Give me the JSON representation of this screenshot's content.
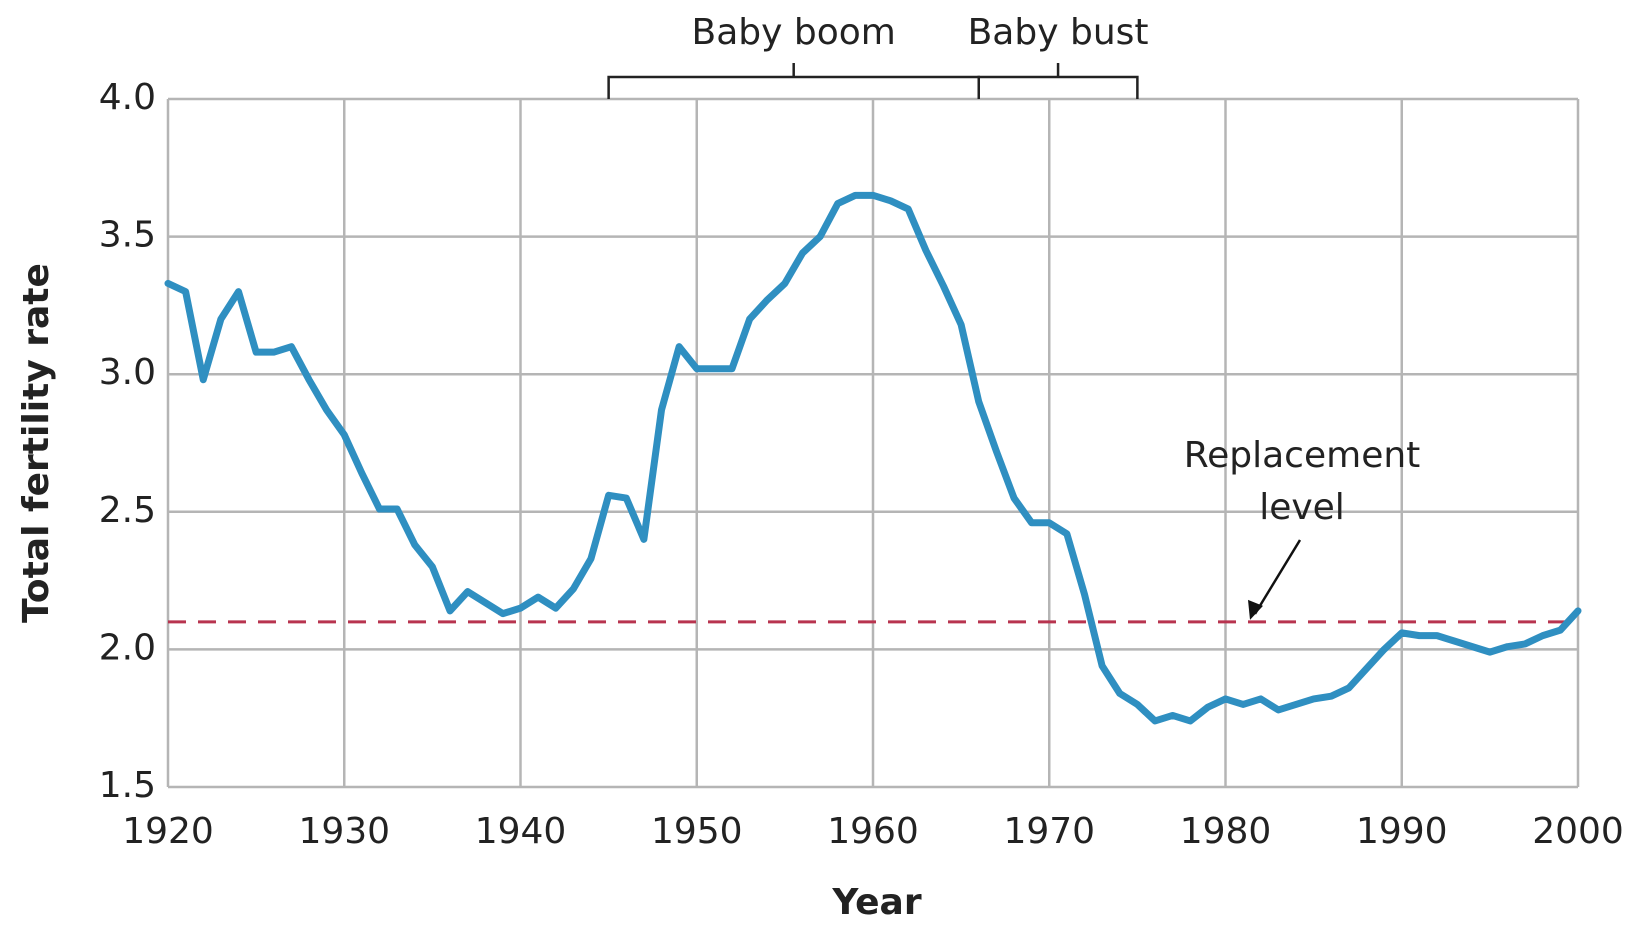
{
  "chart_data": {
    "type": "line",
    "x_label": "Year",
    "y_label": "Total fertility rate",
    "x": [
      1920,
      1921,
      1922,
      1923,
      1924,
      1925,
      1926,
      1927,
      1928,
      1929,
      1930,
      1931,
      1932,
      1933,
      1934,
      1935,
      1936,
      1937,
      1938,
      1939,
      1940,
      1941,
      1942,
      1943,
      1944,
      1945,
      1946,
      1947,
      1948,
      1949,
      1950,
      1951,
      1952,
      1953,
      1954,
      1955,
      1956,
      1957,
      1958,
      1959,
      1960,
      1961,
      1962,
      1963,
      1964,
      1965,
      1966,
      1967,
      1968,
      1969,
      1970,
      1971,
      1972,
      1973,
      1974,
      1975,
      1976,
      1977,
      1978,
      1979,
      1980,
      1981,
      1982,
      1983,
      1984,
      1985,
      1986,
      1987,
      1988,
      1989,
      1990,
      1991,
      1992,
      1993,
      1994,
      1995,
      1996,
      1997,
      1998,
      1999,
      2000
    ],
    "series": [
      {
        "color": "#2f8fc1",
        "values": [
          3.33,
          3.3,
          2.98,
          3.2,
          3.3,
          3.08,
          3.08,
          3.1,
          2.98,
          2.87,
          2.78,
          2.64,
          2.51,
          2.51,
          2.38,
          2.3,
          2.14,
          2.21,
          2.17,
          2.13,
          2.15,
          2.19,
          2.15,
          2.22,
          2.33,
          2.56,
          2.55,
          2.4,
          2.87,
          3.1,
          3.02,
          3.02,
          3.02,
          3.2,
          3.27,
          3.33,
          3.44,
          3.5,
          3.62,
          3.65,
          3.65,
          3.63,
          3.6,
          3.45,
          3.32,
          3.18,
          2.9,
          2.72,
          2.55,
          2.46,
          2.46,
          2.42,
          2.2,
          1.94,
          1.84,
          1.8,
          1.74,
          1.76,
          1.74,
          1.79,
          1.82,
          1.8,
          1.82,
          1.78,
          1.8,
          1.82,
          1.83,
          1.86,
          1.93,
          2.0,
          2.06,
          2.05,
          2.05,
          2.03,
          2.01,
          1.99,
          2.01,
          2.02,
          2.05,
          2.07,
          2.14
        ]
      }
    ],
    "xlim": [
      1920,
      2000
    ],
    "xticks": [
      1920,
      1930,
      1940,
      1950,
      1960,
      1970,
      1980,
      1990,
      2000
    ],
    "ylim": [
      1.5,
      4.0
    ],
    "yticks": [
      1.5,
      {
        "value": 2,
        "label": "2.0"
      },
      2.5,
      {
        "value": 3,
        "label": "3.0"
      },
      3.5,
      {
        "value": 4,
        "label": "4.0"
      }
    ],
    "grid": true,
    "reference_line": {
      "value": 2.1,
      "color": "#b8344f",
      "label": [
        "Replacement",
        "level"
      ]
    },
    "periods": [
      {
        "label": "Baby boom",
        "start": 1945,
        "end": 1966
      },
      {
        "label": "Baby bust",
        "start": 1966,
        "end": 1975
      }
    ]
  }
}
